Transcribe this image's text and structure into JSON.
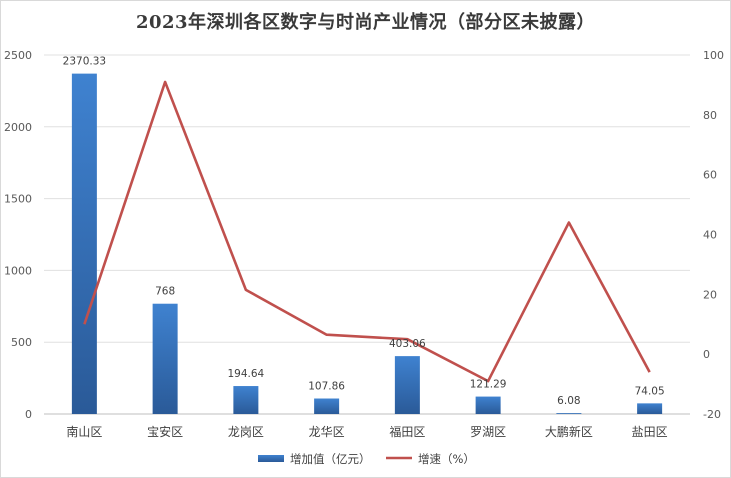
{
  "chart_data": {
    "type": "bar+line",
    "title": "2023年深圳各区数字与时尚产业情况（部分区未披露）",
    "categories": [
      "南山区",
      "宝安区",
      "龙岗区",
      "龙华区",
      "福田区",
      "罗湖区",
      "大鹏新区",
      "盐田区"
    ],
    "series": [
      {
        "name": "增加值（亿元）",
        "type": "bar",
        "axis": "left",
        "color": "#3a78c4",
        "values": [
          2370.33,
          768,
          194.64,
          107.86,
          403.06,
          121.29,
          6.08,
          74.05
        ],
        "labels": [
          "2370.33",
          "768",
          "194.64",
          "107.86",
          "403.06",
          "121.29",
          "6.08",
          "74.05"
        ]
      },
      {
        "name": "增速（%）",
        "type": "line",
        "axis": "right",
        "color": "#c0504d",
        "values": [
          10,
          91,
          21.5,
          6.5,
          5,
          -9,
          44,
          -6
        ]
      }
    ],
    "left_axis": {
      "ylim": [
        0,
        2500
      ],
      "ticks": [
        "0",
        "500",
        "1000",
        "1500",
        "2000",
        "2500"
      ]
    },
    "right_axis": {
      "ylim": [
        -20,
        100
      ],
      "ticks": [
        "-20",
        "0",
        "20",
        "40",
        "60",
        "80",
        "100"
      ]
    },
    "legend_position": "bottom",
    "grid": true
  }
}
